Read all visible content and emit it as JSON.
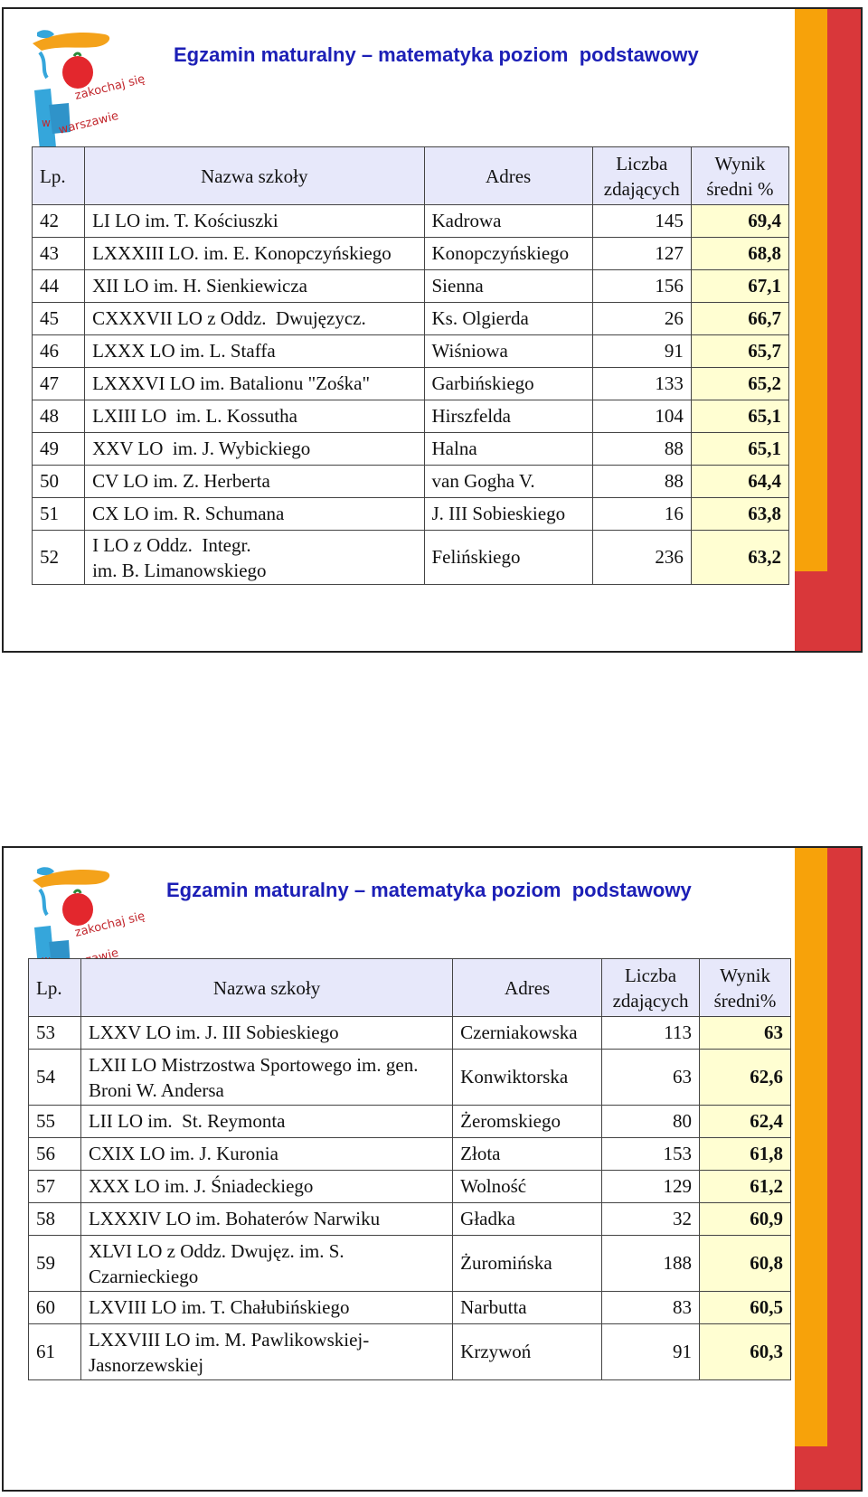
{
  "slides": [
    {
      "title": "Egzamin maturalny – matematyka poziom  podstawowy",
      "logo_text": [
        "zakochaj się",
        "w",
        "warszawie"
      ],
      "headers": {
        "lp": "Lp.",
        "name": "Nazwa szkoły",
        "address": "Adres",
        "count_line1": "Liczba",
        "count_line2": "zdających",
        "result_line1": "Wynik",
        "result_line2": "średni %"
      },
      "rows": [
        {
          "lp": "42",
          "name": "LI LO im. T. Kościuszki",
          "address": "Kadrowa",
          "count": "145",
          "result": "69,4"
        },
        {
          "lp": "43",
          "name": "LXXXIII LO. im. E. Konopczyńskiego",
          "address": "Konopczyńskiego",
          "count": "127",
          "result": "68,8"
        },
        {
          "lp": "44",
          "name": "XII LO im. H. Sienkiewicza",
          "address": "Sienna",
          "count": "156",
          "result": "67,1"
        },
        {
          "lp": "45",
          "name": "CXXXVII LO z Oddz.  Dwujęzycz.",
          "address": "Ks. Olgierda",
          "count": "26",
          "result": "66,7"
        },
        {
          "lp": "46",
          "name": "LXXX LO im. L. Staffa",
          "address": "Wiśniowa",
          "count": "91",
          "result": "65,7"
        },
        {
          "lp": "47",
          "name": "LXXXVI LO im. Batalionu \"Zośka\"",
          "address": "Garbińskiego",
          "count": "133",
          "result": "65,2"
        },
        {
          "lp": "48",
          "name": "LXIII LO  im. L. Kossutha",
          "address": "Hirszfelda",
          "count": "104",
          "result": "65,1"
        },
        {
          "lp": "49",
          "name": "XXV LO  im. J. Wybickiego",
          "address": "Halna",
          "count": "88",
          "result": "65,1"
        },
        {
          "lp": "50",
          "name": "CV LO im. Z. Herberta",
          "address": "van Gogha V.",
          "count": "88",
          "result": "64,4"
        },
        {
          "lp": "51",
          "name": "CX LO im. R. Schumana",
          "address": "J. III Sobieskiego",
          "count": "16",
          "result": "63,8"
        },
        {
          "lp": "52",
          "name_line1": "I LO z Oddz.  Integr.",
          "name_line2": "im. B. Limanowskiego",
          "address": "Felińskiego",
          "count": "236",
          "result": "63,2"
        }
      ]
    },
    {
      "title": "Egzamin maturalny – matematyka poziom  podstawowy",
      "logo_text": [
        "zakochaj się",
        "w",
        "warszawie"
      ],
      "headers": {
        "lp": "Lp.",
        "name": "Nazwa szkoły",
        "address": "Adres",
        "count_line1": "Liczba",
        "count_line2": "zdających",
        "result_line1": "Wynik",
        "result_line2": "średni%"
      },
      "rows": [
        {
          "lp": "53",
          "name": "LXXV LO im. J. III Sobieskiego",
          "address": "Czerniakowska",
          "count": "113",
          "result": "63"
        },
        {
          "lp": "54",
          "name_line1": "LXII LO Mistrzostwa Sportowego im. gen.",
          "name_line2": "Broni W. Andersa",
          "address": "Konwiktorska",
          "count": "63",
          "result": "62,6"
        },
        {
          "lp": "55",
          "name": "LII LO im.  St. Reymonta",
          "address": "Żeromskiego",
          "count": "80",
          "result": "62,4"
        },
        {
          "lp": "56",
          "name": "CXIX LO im. J. Kuronia",
          "address": "Złota",
          "count": "153",
          "result": "61,8"
        },
        {
          "lp": "57",
          "name": "XXX LO im. J. Śniadeckiego",
          "address": "Wolność",
          "count": "129",
          "result": "61,2"
        },
        {
          "lp": "58",
          "name": "LXXXIV LO im. Bohaterów Narwiku",
          "address": "Gładka",
          "count": "32",
          "result": "60,9"
        },
        {
          "lp": "59",
          "name_line1": "XLVI LO z Oddz. Dwujęz. im. S.",
          "name_line2": "Czarnieckiego",
          "address": "Żuromińska",
          "count": "188",
          "result": "60,8"
        },
        {
          "lp": "60",
          "name": "LXVIII LO im. T. Chałubińskiego",
          "address": "Narbutta",
          "count": "83",
          "result": "60,5"
        },
        {
          "lp": "61",
          "name_line1": "LXXVIII LO im. M. Pawlikowskiej-",
          "name_line2": "Jasnorzewskiej",
          "address": "Krzywoń",
          "count": "91",
          "result": "60,3"
        }
      ]
    }
  ]
}
